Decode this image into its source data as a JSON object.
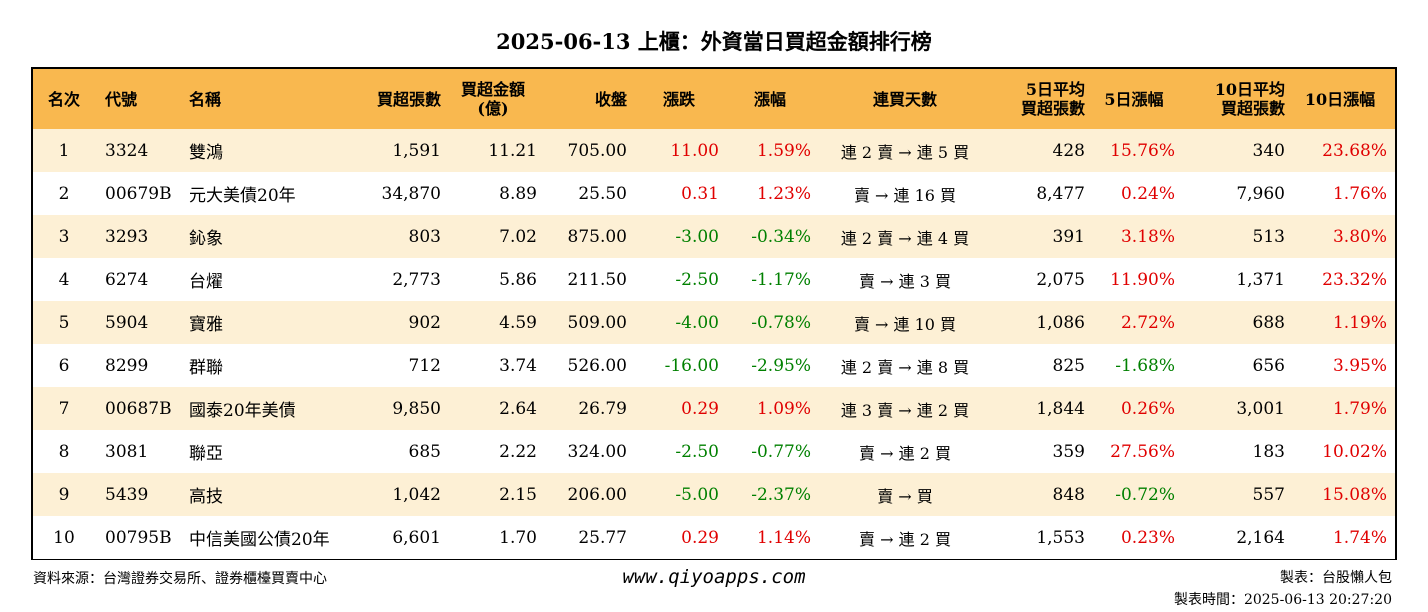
{
  "title": "2025-06-13 上櫃：外資當日買超金額排行榜",
  "colors": {
    "header_bg": "#f9b84f",
    "stripe_bg": "#fdf0d5",
    "up": "#e00000",
    "down": "#008000"
  },
  "chart_data": {
    "type": "table",
    "columns": [
      "名次",
      "代號",
      "名稱",
      "買超張數",
      "買超金額\n(億)",
      "收盤",
      "漲跌",
      "漲幅",
      "連買天數",
      "5日平均\n買超張數",
      "5日漲幅",
      "10日平均\n買超張數",
      "10日漲幅"
    ],
    "rows": [
      [
        "1",
        "3324",
        "雙鴻",
        "1,591",
        "11.21",
        "705.00",
        "11.00",
        "1.59%",
        "連 2 賣 → 連 5 買",
        "428",
        "15.76%",
        "340",
        "23.68%"
      ],
      [
        "2",
        "00679B",
        "元大美債20年",
        "34,870",
        "8.89",
        "25.50",
        "0.31",
        "1.23%",
        "賣 → 連 16 買",
        "8,477",
        "0.24%",
        "7,960",
        "1.76%"
      ],
      [
        "3",
        "3293",
        "鈊象",
        "803",
        "7.02",
        "875.00",
        "-3.00",
        "-0.34%",
        "連 2 賣 → 連 4 買",
        "391",
        "3.18%",
        "513",
        "3.80%"
      ],
      [
        "4",
        "6274",
        "台燿",
        "2,773",
        "5.86",
        "211.50",
        "-2.50",
        "-1.17%",
        "賣 → 連 3 買",
        "2,075",
        "11.90%",
        "1,371",
        "23.32%"
      ],
      [
        "5",
        "5904",
        "寶雅",
        "902",
        "4.59",
        "509.00",
        "-4.00",
        "-0.78%",
        "賣 → 連 10 買",
        "1,086",
        "2.72%",
        "688",
        "1.19%"
      ],
      [
        "6",
        "8299",
        "群聯",
        "712",
        "3.74",
        "526.00",
        "-16.00",
        "-2.95%",
        "連 2 賣 → 連 8 買",
        "825",
        "-1.68%",
        "656",
        "3.95%"
      ],
      [
        "7",
        "00687B",
        "國泰20年美債",
        "9,850",
        "2.64",
        "26.79",
        "0.29",
        "1.09%",
        "連 3 賣 → 連 2 買",
        "1,844",
        "0.26%",
        "3,001",
        "1.79%"
      ],
      [
        "8",
        "3081",
        "聯亞",
        "685",
        "2.22",
        "324.00",
        "-2.50",
        "-0.77%",
        "賣 → 連 2 買",
        "359",
        "27.56%",
        "183",
        "10.02%"
      ],
      [
        "9",
        "5439",
        "高技",
        "1,042",
        "2.15",
        "206.00",
        "-5.00",
        "-2.37%",
        "賣 → 買",
        "848",
        "-0.72%",
        "557",
        "15.08%"
      ],
      [
        "10",
        "00795B",
        "中信美國公債20年",
        "6,601",
        "1.70",
        "25.77",
        "0.29",
        "1.14%",
        "賣 → 連 2 買",
        "1,553",
        "0.23%",
        "2,164",
        "1.74%"
      ]
    ]
  },
  "footer": {
    "source": "資料來源：台灣證券交易所、證券櫃檯買賣中心",
    "website": "www.qiyoapps.com",
    "author": "製表：台股懶人包",
    "time": "製表時間：2025-06-13 20:27:20"
  }
}
